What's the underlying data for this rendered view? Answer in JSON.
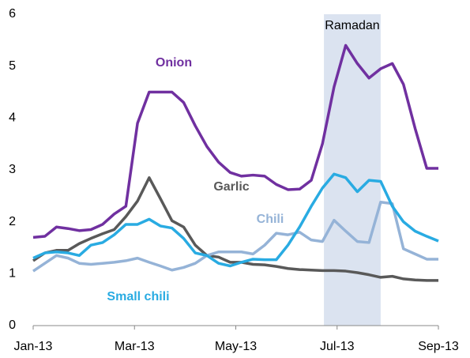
{
  "chart_data": {
    "type": "line",
    "x": [
      0,
      0.23,
      0.46,
      0.69,
      0.91,
      1.14,
      1.37,
      1.6,
      1.83,
      2.06,
      2.29,
      2.51,
      2.74,
      2.97,
      3.2,
      3.43,
      3.66,
      3.89,
      4.11,
      4.34,
      4.57,
      4.8,
      5.03,
      5.26,
      5.49,
      5.71,
      5.94,
      6.17,
      6.4,
      6.63,
      6.86,
      7.09,
      7.31,
      7.54,
      7.77,
      8
    ],
    "xlim": [
      0,
      8
    ],
    "xticks": [
      {
        "value": 0,
        "label": "Jan-13"
      },
      {
        "value": 2,
        "label": "Mar-13"
      },
      {
        "value": 4,
        "label": "May-13"
      },
      {
        "value": 6,
        "label": "Jul-13"
      },
      {
        "value": 8,
        "label": "Sep-13"
      }
    ],
    "ylim": [
      0,
      6
    ],
    "yticks": [
      0,
      1,
      2,
      3,
      4,
      5,
      6
    ],
    "shade": {
      "label": "Ramadan",
      "range": [
        5.74,
        6.86
      ],
      "color": "#dbe3f0"
    },
    "series": [
      {
        "name": "Onion",
        "color": "#7030a0",
        "values": [
          1.7,
          1.72,
          1.9,
          1.87,
          1.83,
          1.85,
          1.95,
          2.15,
          2.3,
          3.9,
          4.5,
          4.5,
          4.5,
          4.3,
          3.85,
          3.45,
          3.15,
          2.95,
          2.88,
          2.9,
          2.88,
          2.72,
          2.62,
          2.63,
          2.8,
          3.5,
          4.6,
          5.4,
          5.05,
          4.77,
          4.95,
          5.05,
          4.65,
          3.8,
          3.03,
          3.03
        ]
      },
      {
        "name": "Garlic",
        "color": "#595959",
        "values": [
          1.25,
          1.4,
          1.45,
          1.45,
          1.58,
          1.68,
          1.77,
          1.85,
          2.1,
          2.4,
          2.85,
          2.45,
          2.02,
          1.9,
          1.55,
          1.35,
          1.32,
          1.22,
          1.22,
          1.18,
          1.17,
          1.14,
          1.1,
          1.08,
          1.07,
          1.06,
          1.06,
          1.05,
          1.02,
          0.98,
          0.93,
          0.95,
          0.9,
          0.88,
          0.87,
          0.87
        ]
      },
      {
        "name": "Chili",
        "color": "#95b3d7",
        "values": [
          1.05,
          1.2,
          1.35,
          1.3,
          1.2,
          1.18,
          1.2,
          1.22,
          1.25,
          1.3,
          1.22,
          1.15,
          1.07,
          1.12,
          1.2,
          1.35,
          1.42,
          1.42,
          1.42,
          1.38,
          1.55,
          1.78,
          1.75,
          1.8,
          1.65,
          1.62,
          2.03,
          1.82,
          1.62,
          1.6,
          2.38,
          2.35,
          1.48,
          1.38,
          1.28,
          1.28
        ]
      },
      {
        "name": "Small chili",
        "color": "#29abe2",
        "values": [
          1.3,
          1.4,
          1.42,
          1.4,
          1.35,
          1.55,
          1.6,
          1.75,
          1.95,
          1.95,
          2.05,
          1.92,
          1.88,
          1.68,
          1.4,
          1.35,
          1.2,
          1.15,
          1.22,
          1.28,
          1.27,
          1.27,
          1.55,
          1.9,
          2.3,
          2.65,
          2.92,
          2.85,
          2.58,
          2.8,
          2.78,
          2.3,
          2.0,
          1.82,
          1.72,
          1.63
        ]
      }
    ]
  }
}
